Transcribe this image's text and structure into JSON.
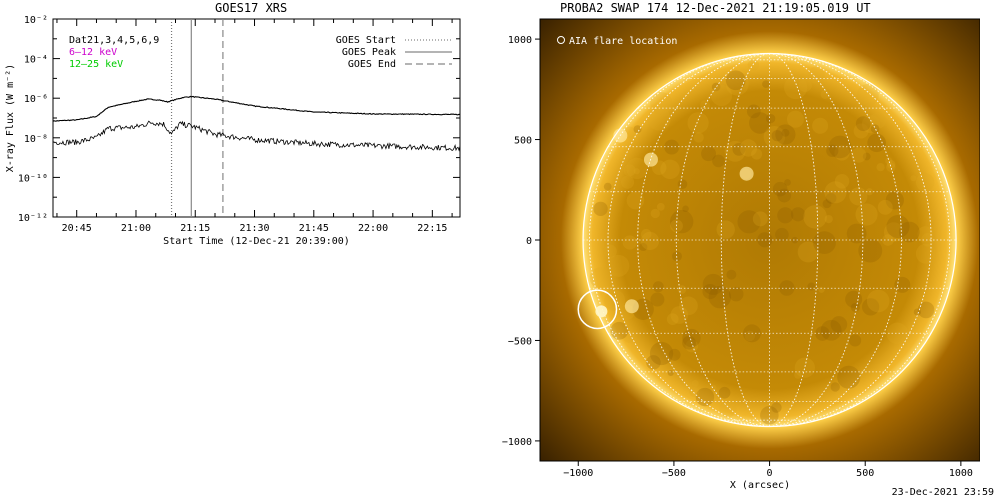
{
  "goes_panel": {
    "title": "GOES17 XRS",
    "chart_data": {
      "type": "line",
      "title": "GOES17 XRS",
      "xlabel": "Start Time (12-Dec-21 20:39:00)",
      "ylabel": "X-ray Flux (W m⁻²)",
      "y_scale": "log",
      "ylim": [
        1e-12,
        0.01
      ],
      "xlim": [
        "20:39",
        "22:22"
      ],
      "x_ticks": [
        "20:45",
        "21:00",
        "21:15",
        "21:30",
        "21:45",
        "22:00",
        "22:15"
      ],
      "y_ticks": [
        "10⁻¹²",
        "10⁻¹⁰",
        "10⁻⁸",
        "10⁻⁶",
        "10⁻⁴",
        "10⁻²"
      ],
      "legend_left": [
        "Dat21,3,4,5,6,9",
        "6–12 keV",
        "12–25 keV"
      ],
      "legend_left_colors": [
        "#000000",
        "#cc00cc",
        "#00cc00"
      ],
      "legend_right": [
        "GOES Start",
        "GOES Peak",
        "GOES End"
      ],
      "markers": {
        "start": "21:09",
        "peak": "21:14",
        "end": "21:22"
      },
      "series": [
        {
          "name": "long",
          "x": [
            "20:39",
            "20:45",
            "20:50",
            "20:53",
            "21:00",
            "21:03",
            "21:06",
            "21:08",
            "21:10",
            "21:12",
            "21:14",
            "21:20",
            "21:30",
            "21:45",
            "22:00",
            "22:22"
          ],
          "values": [
            7e-08,
            8e-08,
            1.2e-07,
            3.5e-07,
            7e-07,
            9e-07,
            8e-07,
            6.5e-07,
            8.5e-07,
            1.1e-06,
            1.2e-06,
            9e-07,
            4e-07,
            2e-07,
            1.6e-07,
            1.5e-07
          ]
        },
        {
          "name": "short",
          "x": [
            "20:39",
            "20:45",
            "20:50",
            "20:53",
            "21:00",
            "21:04",
            "21:07",
            "21:09",
            "21:11",
            "21:14",
            "21:20",
            "21:30",
            "21:45",
            "22:00",
            "22:22"
          ],
          "values": [
            6e-09,
            6e-09,
            1e-08,
            3e-08,
            3.5e-08,
            6e-08,
            5e-08,
            1.5e-08,
            5e-08,
            4e-08,
            1.5e-08,
            8e-09,
            5e-09,
            4e-09,
            3e-09
          ]
        }
      ]
    }
  },
  "swap_panel": {
    "title": "PROBA2 SWAP 174 12-Dec-2021 21:19:05.019 UT",
    "legend": "AIA flare location",
    "chart_data": {
      "type": "scatter",
      "xlabel": "X (arcsec)",
      "ylabel": "",
      "xlim": [
        -1200,
        1100
      ],
      "ylim": [
        -1100,
        1100
      ],
      "x_ticks": [
        "-1000",
        "-500",
        "0",
        "500",
        "1000"
      ],
      "y_ticks": [
        "1000",
        "500",
        "0",
        "-500",
        "-1000"
      ],
      "solar_radius_arcsec": 975,
      "flare_location": {
        "x": -900,
        "y": -345,
        "radius": 100
      }
    }
  },
  "footer": {
    "stamp": "23-Dec-2021 23:59"
  }
}
